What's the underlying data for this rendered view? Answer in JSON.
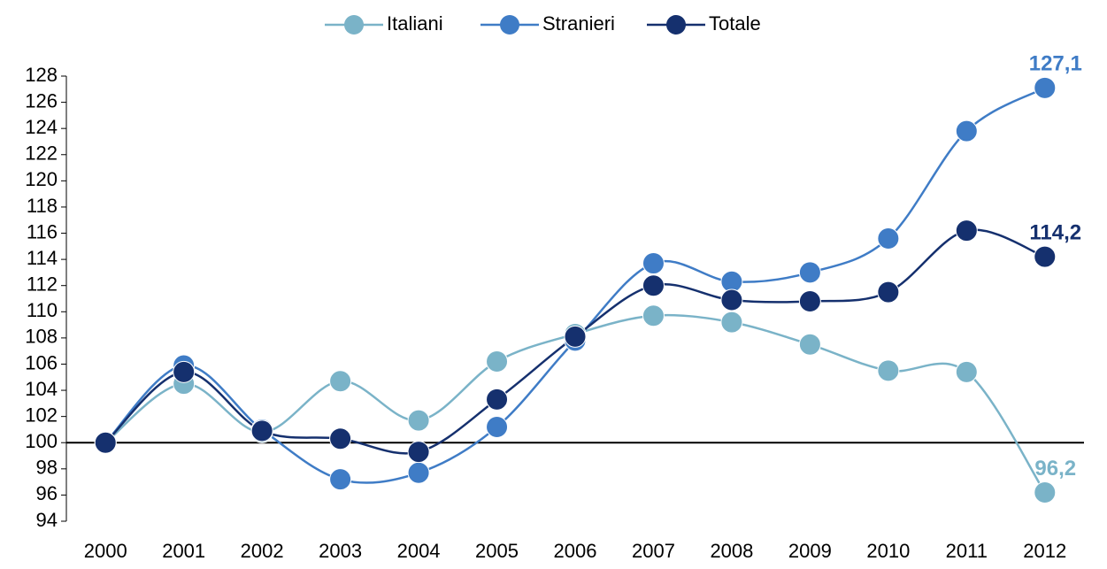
{
  "chart_data": {
    "type": "line",
    "categories": [
      "2000",
      "2001",
      "2002",
      "2003",
      "2004",
      "2005",
      "2006",
      "2007",
      "2008",
      "2009",
      "2010",
      "2011",
      "2012"
    ],
    "series": [
      {
        "name": "Italiani",
        "color": "#7ab3c8",
        "values": [
          100,
          104.5,
          100.8,
          104.7,
          101.7,
          106.2,
          108.3,
          109.7,
          109.2,
          107.5,
          105.5,
          105.4,
          96.2
        ],
        "value_labels": [
          null,
          null,
          null,
          null,
          null,
          null,
          null,
          null,
          null,
          null,
          null,
          null,
          "96,2"
        ]
      },
      {
        "name": "Stranieri",
        "color": "#3f7cc6",
        "values": [
          100,
          105.9,
          101,
          97.2,
          97.7,
          101.2,
          107.8,
          113.7,
          112.3,
          113,
          115.6,
          123.8,
          127.1
        ],
        "value_labels": [
          null,
          null,
          null,
          null,
          null,
          null,
          null,
          null,
          null,
          null,
          null,
          null,
          "127,1"
        ]
      },
      {
        "name": "Totale",
        "color": "#15306e",
        "values": [
          100,
          105.4,
          100.9,
          100.3,
          99.3,
          103.3,
          108.1,
          112,
          110.9,
          110.8,
          111.5,
          116.2,
          114.2
        ],
        "value_labels": [
          null,
          null,
          null,
          null,
          null,
          null,
          null,
          null,
          null,
          null,
          null,
          null,
          "114,2"
        ]
      }
    ],
    "ylim": [
      94,
      128
    ],
    "yticks": [
      94,
      96,
      98,
      100,
      102,
      104,
      106,
      108,
      110,
      112,
      114,
      116,
      118,
      120,
      122,
      124,
      126,
      128
    ],
    "x_axis_at": 100,
    "legend": "top",
    "smooth": true
  }
}
